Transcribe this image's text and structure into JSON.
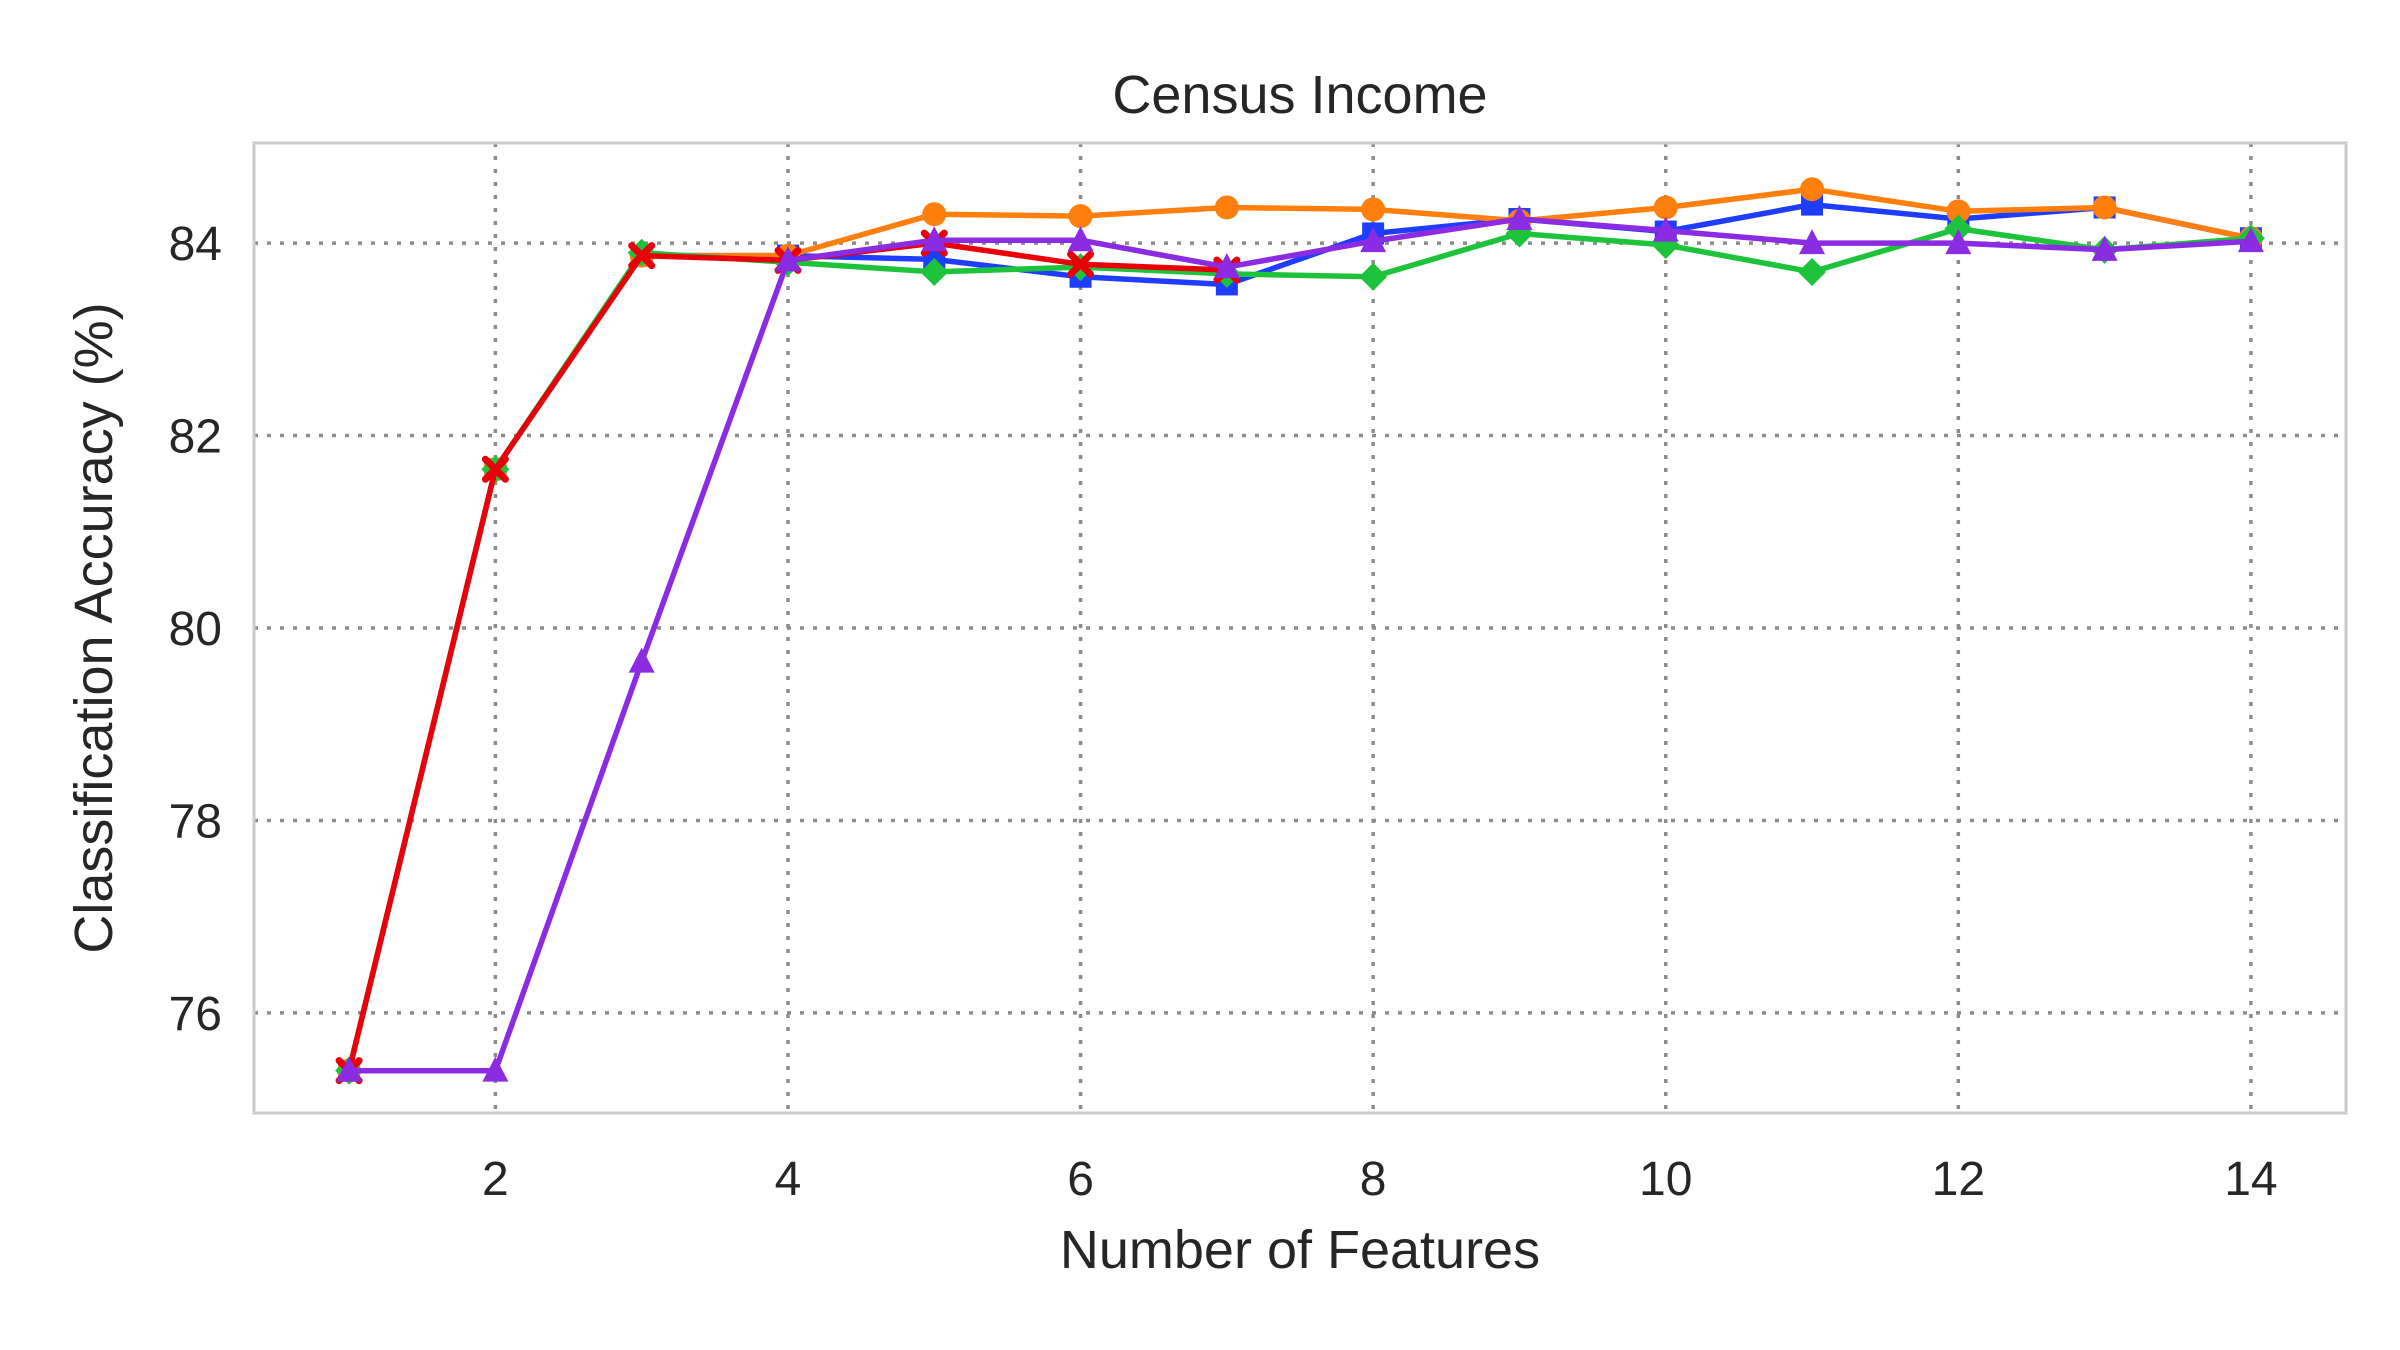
{
  "chart_data": {
    "type": "line",
    "title": "Census Income",
    "xlabel": "Number of Features",
    "ylabel": "Classification Accuracy (%)",
    "xlim": [
      0.35,
      14.65
    ],
    "ylim": [
      74.96,
      85.04
    ],
    "xticks": [
      2,
      4,
      6,
      8,
      10,
      12,
      14
    ],
    "yticks": [
      76,
      78,
      80,
      82,
      84
    ],
    "grid": true,
    "legend": "none",
    "x": [
      1,
      2,
      3,
      4,
      5,
      6,
      7,
      8,
      9,
      10,
      11,
      12,
      13,
      14
    ],
    "series": [
      {
        "color": "#1f3dff",
        "marker": "square",
        "values": [
          75.4,
          81.65,
          83.87,
          83.87,
          83.83,
          83.65,
          83.57,
          84.1,
          84.25,
          84.12,
          84.4,
          84.25,
          84.37,
          84.05
        ]
      },
      {
        "color": "#ff7f0e",
        "marker": "circle",
        "values": [
          75.4,
          81.65,
          83.87,
          83.87,
          84.3,
          84.28,
          84.37,
          84.35,
          84.23,
          84.37,
          84.56,
          84.33,
          84.37,
          84.05
        ]
      },
      {
        "color": "#1dc43b",
        "marker": "diamond",
        "values": [
          75.4,
          81.65,
          83.9,
          83.8,
          83.7,
          83.75,
          83.68,
          83.65,
          84.1,
          83.98,
          83.7,
          84.15,
          83.93,
          84.05
        ]
      },
      {
        "color": "#e8000b",
        "marker": "x",
        "values": [
          75.4,
          81.65,
          83.87,
          83.82,
          84.0,
          83.78,
          83.72,
          null,
          null,
          null,
          null,
          null,
          null,
          null
        ]
      },
      {
        "color": "#8b2be2",
        "marker": "triangle",
        "values": [
          75.4,
          75.4,
          79.65,
          83.82,
          84.03,
          84.03,
          83.75,
          84.02,
          84.25,
          84.13,
          84.0,
          84.0,
          83.93,
          84.02
        ]
      }
    ]
  }
}
